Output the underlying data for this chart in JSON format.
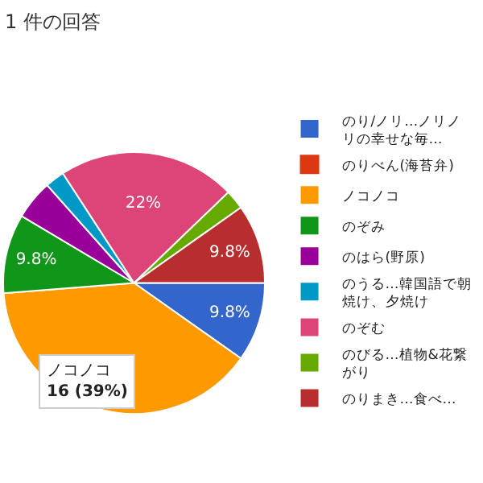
{
  "chart_data": {
    "type": "pie",
    "title": "1 件の回答",
    "categories": [
      "のり/ノリ…ノリノリの幸せな毎…",
      "のりべん(海苔弁)",
      "ノコノコ",
      "のぞみ",
      "のはら(野原)",
      "のうる…韓国語で朝焼け、夕焼け",
      "のぞむ",
      "のびる…植物&花繋がり",
      "のりまき…食べ…"
    ],
    "values": [
      9.8,
      0,
      39,
      9.8,
      4.9,
      2.4,
      22,
      2.4,
      9.8
    ],
    "colors": [
      "#3366cc",
      "#dc3912",
      "#ff9900",
      "#109618",
      "#990099",
      "#0099c6",
      "#dd4477",
      "#66aa00",
      "#b82e2e"
    ],
    "value_labels": [
      "9.8%",
      null,
      null,
      "9.8%",
      null,
      null,
      "22%",
      null,
      "9.8%"
    ],
    "annotations": [
      "ノコノコ\n16 (39%)"
    ],
    "legend": "right"
  }
}
